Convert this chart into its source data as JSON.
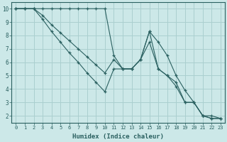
{
  "xlabel": "Humidex (Indice chaleur)",
  "ylabel": "",
  "background_color": "#cce8e8",
  "grid_color": "#aacfcf",
  "line_color": "#2a6060",
  "xlim": [
    -0.5,
    23.5
  ],
  "ylim": [
    1.5,
    10.5
  ],
  "xticks": [
    0,
    1,
    2,
    3,
    4,
    5,
    6,
    7,
    8,
    9,
    10,
    11,
    12,
    13,
    14,
    15,
    16,
    17,
    18,
    19,
    20,
    21,
    22,
    23
  ],
  "yticks": [
    2,
    3,
    4,
    5,
    6,
    7,
    8,
    9,
    10
  ],
  "line1_x": [
    0,
    1,
    2,
    3,
    4,
    5,
    6,
    7,
    8,
    9,
    10,
    11,
    12,
    13,
    14,
    15,
    16,
    17,
    18,
    19,
    20,
    21,
    22,
    23
  ],
  "line1_y": [
    10,
    10,
    10,
    10,
    10,
    10,
    10,
    10,
    10,
    10,
    10,
    6.5,
    5.5,
    5.5,
    6.2,
    8.3,
    7.5,
    6.5,
    5.0,
    3.9,
    3.0,
    2.0,
    2.0,
    1.8
  ],
  "line2_x": [
    0,
    1,
    2,
    3,
    4,
    5,
    6,
    7,
    8,
    9,
    10,
    11,
    12,
    13,
    14,
    15,
    16,
    17,
    18,
    19,
    20,
    21,
    22,
    23
  ],
  "line2_y": [
    10,
    10,
    10,
    9.5,
    8.8,
    8.2,
    7.6,
    7.0,
    6.4,
    5.8,
    5.2,
    6.2,
    5.5,
    5.5,
    6.2,
    8.3,
    5.5,
    5.0,
    4.2,
    3.0,
    3.0,
    2.0,
    1.8,
    1.8
  ],
  "line3_x": [
    0,
    1,
    2,
    3,
    4,
    5,
    6,
    7,
    8,
    9,
    10,
    11,
    12,
    13,
    14,
    15,
    16,
    17,
    18,
    19,
    20,
    21,
    22,
    23
  ],
  "line3_y": [
    10,
    10,
    10,
    9.2,
    8.3,
    7.5,
    6.7,
    6.0,
    5.2,
    4.5,
    3.8,
    5.5,
    5.5,
    5.5,
    6.2,
    7.5,
    5.5,
    5.0,
    4.5,
    3.0,
    3.0,
    2.0,
    1.8,
    1.8
  ]
}
